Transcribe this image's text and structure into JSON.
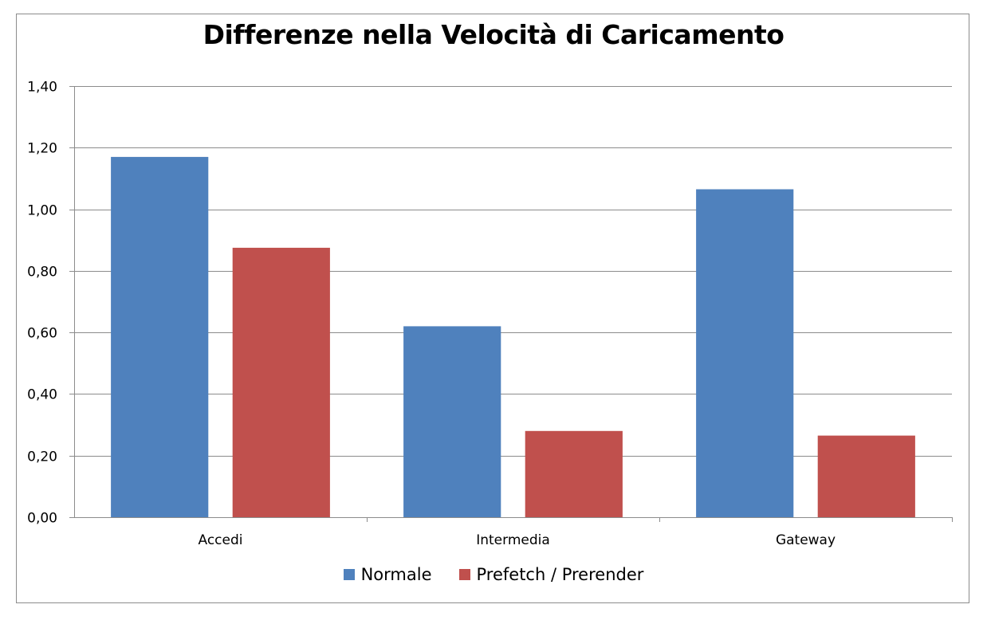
{
  "chart_data": {
    "type": "bar",
    "title": "Differenze nella Velocità di Caricamento",
    "xlabel": "",
    "ylabel": "",
    "categories": [
      "Accedi",
      "Intermedia",
      "Gateway"
    ],
    "series": [
      {
        "name": "Normale",
        "values": [
          1.17,
          0.62,
          1.065
        ],
        "color": "#4f81bd"
      },
      {
        "name": "Prefetch / Prerender",
        "values": [
          0.875,
          0.28,
          0.265
        ],
        "color": "#c0504d"
      }
    ],
    "ylim": [
      0,
      1.4
    ],
    "yticks": [
      0,
      0.2,
      0.4,
      0.6,
      0.8,
      1.0,
      1.2,
      1.4
    ],
    "ytick_labels": [
      "0,00",
      "0,20",
      "0,40",
      "0,60",
      "0,80",
      "1,00",
      "1,20",
      "1,40"
    ],
    "grid": true,
    "legend_position": "bottom",
    "gridline_color": "#8c8c8c"
  }
}
